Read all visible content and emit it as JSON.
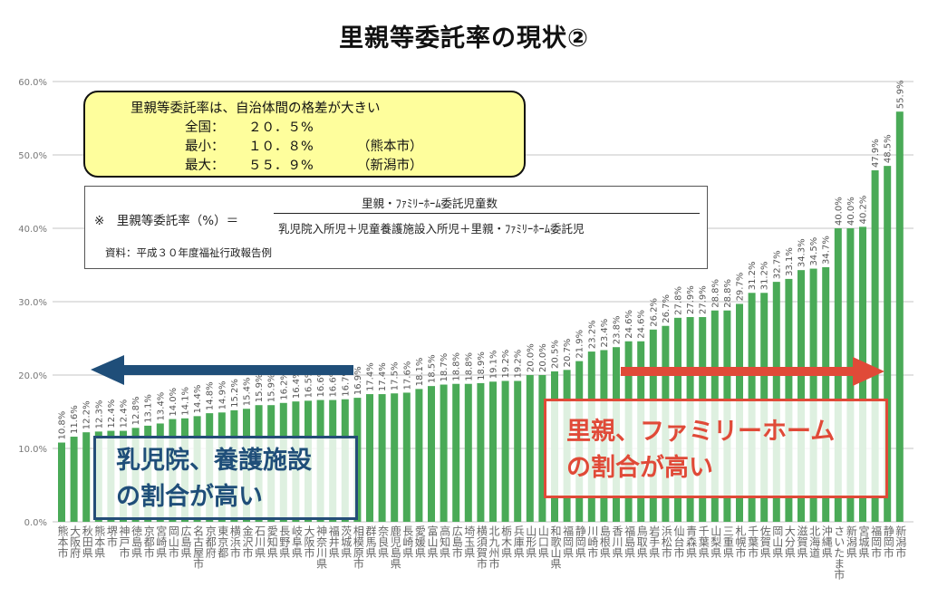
{
  "title": "里親等委託率の現状②",
  "summary": {
    "heading": "里親等委託率は、自治体間の格差が大きい",
    "national_label": "全国：",
    "national_value": "２０．５%",
    "min_label": "最小：",
    "min_value": "１０．８%",
    "min_place": "（熊本市）",
    "max_label": "最大：",
    "max_value": "５５．９%",
    "max_place": "（新潟市）"
  },
  "formula": {
    "lhs": "※　里親等委託率（%）＝",
    "numerator": "里親・ﾌｧﾐﾘｰﾎｰﾑ委託児童数",
    "denominator": "乳児院入所児＋児童養護施設入所児＋里親・ﾌｧﾐﾘｰﾎｰﾑ委託児",
    "source": "資料：平成３０年度福祉行政報告例"
  },
  "callouts": {
    "left_line1": "乳児院、養護施設",
    "left_line2": "の割合が高い",
    "right_line1": "里親、ファミリーホーム",
    "right_line2": "の割合が高い"
  },
  "colors": {
    "bar": "#4aaa57",
    "left_arrow": "#1f4e79",
    "right_arrow": "#e04a38"
  },
  "chart_data": {
    "type": "bar",
    "title": "里親等委託率の現状②",
    "ylim": [
      0,
      60
    ],
    "yticks": [
      0,
      10,
      20,
      30,
      40,
      50,
      60
    ],
    "ytick_labels": [
      "0.0%",
      "10.0%",
      "20.0%",
      "30.0%",
      "40.0%",
      "50.0%",
      "60.0%"
    ],
    "grid": true,
    "categories": [
      "熊本市",
      "大阪府",
      "秋田県",
      "熊本県",
      "堺市",
      "神戸市",
      "徳島県",
      "京都市",
      "宮崎県",
      "岡山市",
      "広島県",
      "名古屋市",
      "京都府",
      "東京都",
      "横浜市",
      "金沢市",
      "石川県",
      "愛知県",
      "長野県",
      "岐阜県",
      "大阪市",
      "神奈川県",
      "福井県",
      "茨城県",
      "相模原市",
      "群馬県",
      "奈良県",
      "鹿児島県",
      "長崎県",
      "愛媛県",
      "富山県",
      "高知県",
      "広島市",
      "埼玉県",
      "横須賀市",
      "北九州市",
      "栃木県",
      "兵庫県",
      "山形県",
      "山口県",
      "和歌山県",
      "福岡県",
      "静岡県",
      "川崎市",
      "島根県",
      "香川県",
      "福島県",
      "鳥取県",
      "岩手県",
      "浜松市",
      "仙台市",
      "青森県",
      "千葉県",
      "山梨県",
      "三重県",
      "札幌市",
      "千葉市",
      "佐賀県",
      "岡山県",
      "大分県",
      "滋賀県",
      "北海道",
      "沖縄県",
      "さいたま市",
      "新潟県",
      "宮城県",
      "福岡市",
      "静岡市",
      "新潟市"
    ],
    "values": [
      10.8,
      11.6,
      12.2,
      12.3,
      12.4,
      12.4,
      12.8,
      13.1,
      13.4,
      14.0,
      14.1,
      14.4,
      14.8,
      14.9,
      15.2,
      15.4,
      15.9,
      15.9,
      16.2,
      16.4,
      16.5,
      16.6,
      16.6,
      16.7,
      16.9,
      17.4,
      17.4,
      17.5,
      17.6,
      18.1,
      18.5,
      18.7,
      18.8,
      18.8,
      18.9,
      19.1,
      19.2,
      19.2,
      20.0,
      20.0,
      20.5,
      20.7,
      21.9,
      23.2,
      23.4,
      23.8,
      24.6,
      24.6,
      26.2,
      26.7,
      27.8,
      27.9,
      27.9,
      28.8,
      28.8,
      29.7,
      31.2,
      31.2,
      32.7,
      33.1,
      34.3,
      34.5,
      34.7,
      40.0,
      40.0,
      40.2,
      47.9,
      48.5,
      55.9
    ],
    "value_labels": [
      "10.8%",
      "11.6%",
      "12.2%",
      "12.3%",
      "12.4%",
      "12.4%",
      "12.8%",
      "13.1%",
      "13.4%",
      "14.0%",
      "14.1%",
      "14.4%",
      "14.8%",
      "14.9%",
      "15.2%",
      "15.4%",
      "15.9%",
      "15.9%",
      "16.2%",
      "16.4%",
      "16.5%",
      "16.6%",
      "16.6%",
      "16.7%",
      "16.9%",
      "17.4%",
      "17.4%",
      "17.5%",
      "17.6%",
      "18.1%",
      "18.5%",
      "18.7%",
      "18.8%",
      "18.8%",
      "18.9%",
      "19.1%",
      "19.2%",
      "19.2%",
      "20.0%",
      "20.0%",
      "20.5%",
      "20.7%",
      "21.9%",
      "23.2%",
      "23.4%",
      "23.8%",
      "24.6%",
      "24.6%",
      "26.2%",
      "26.7%",
      "27.8%",
      "27.9%",
      "27.9%",
      "28.8%",
      "28.8%",
      "29.7%",
      "31.2%",
      "31.2%",
      "32.7%",
      "33.1%",
      "34.3%",
      "34.5%",
      "34.7%",
      "40.0%",
      "40.0%",
      "40.2%",
      "47.9%",
      "48.5%",
      "55.9%"
    ]
  }
}
